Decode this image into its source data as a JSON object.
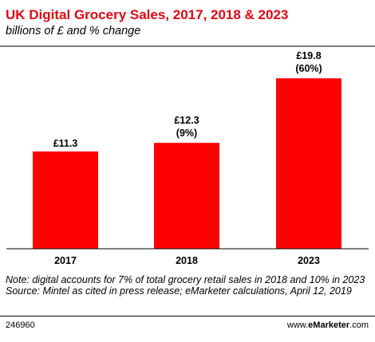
{
  "header": {
    "title": "UK Digital Grocery Sales, 2017, 2018 & 2023",
    "subtitle": "billions of £ and % change"
  },
  "chart_data": {
    "type": "bar",
    "title": "UK Digital Grocery Sales, 2017, 2018 & 2023",
    "subtitle": "billions of £ and % change",
    "categories": [
      "2017",
      "2018",
      "2023"
    ],
    "values": [
      11.3,
      12.3,
      19.8
    ],
    "value_labels": [
      "£11.3",
      "£12.3",
      "£19.8"
    ],
    "change_labels": [
      "",
      "(9%)",
      "(60%)"
    ],
    "ylim": [
      0,
      22.6
    ],
    "grid": false,
    "bar_color": "#ff0000"
  },
  "footer": {
    "note": "Note: digital accounts for 7% of total grocery retail sales in 2018 and 10% in 2023",
    "source": "Source: Mintel as cited in press release; eMarketer calculations, April 12, 2019",
    "code": "246960",
    "brand_prefix": "www.",
    "brand_name": "eMarketer",
    "brand_suffix": ".com"
  },
  "colors": {
    "title": "#e30613",
    "bar": "#ff0000"
  }
}
